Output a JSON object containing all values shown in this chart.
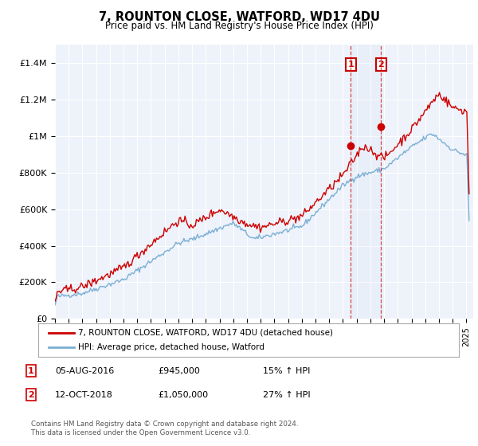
{
  "title": "7, ROUNTON CLOSE, WATFORD, WD17 4DU",
  "subtitle": "Price paid vs. HM Land Registry's House Price Index (HPI)",
  "ylabel_ticks": [
    "£0",
    "£200K",
    "£400K",
    "£600K",
    "£800K",
    "£1M",
    "£1.2M",
    "£1.4M"
  ],
  "ylim": [
    0,
    1500000
  ],
  "yticks": [
    0,
    200000,
    400000,
    600000,
    800000,
    1000000,
    1200000,
    1400000
  ],
  "red_color": "#cc0000",
  "blue_color": "#7bafd4",
  "shade_color": "#d0e4f5",
  "sale1": {
    "date_num": 2016.58,
    "price": 945000,
    "label": "1"
  },
  "sale2": {
    "date_num": 2018.78,
    "price": 1050000,
    "label": "2"
  },
  "legend_entries": [
    "7, ROUNTON CLOSE, WATFORD, WD17 4DU (detached house)",
    "HPI: Average price, detached house, Watford"
  ],
  "table_rows": [
    {
      "num": "1",
      "date": "05-AUG-2016",
      "price": "£945,000",
      "hpi": "15% ↑ HPI"
    },
    {
      "num": "2",
      "date": "12-OCT-2018",
      "price": "£1,050,000",
      "hpi": "27% ↑ HPI"
    }
  ],
  "footer": "Contains HM Land Registry data © Crown copyright and database right 2024.\nThis data is licensed under the Open Government Licence v3.0.",
  "background_color": "#eef2fa"
}
